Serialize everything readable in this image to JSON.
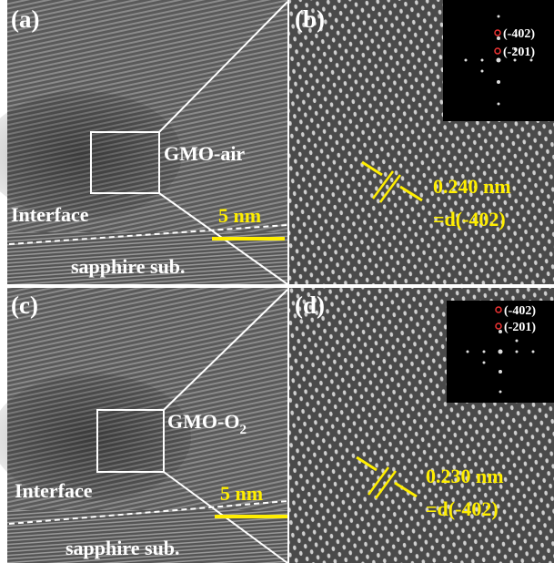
{
  "panels": [
    {
      "label": "(a)",
      "sample": "GMO-air",
      "interface": "Interface",
      "scale_bar": "5 nm",
      "substrate": "sapphire sub."
    },
    {
      "label": "(b)",
      "fft_spots": [
        "(-402)",
        "(-201)"
      ],
      "spacing": "0.240 nm",
      "plane": "=d(-402)"
    },
    {
      "label": "(c)",
      "sample": "GMO-O",
      "sample_subscript": "2",
      "interface": "Interface",
      "scale_bar": "5 nm",
      "substrate": "sapphire sub."
    },
    {
      "label": "(d)",
      "fft_spots": [
        "(-402)",
        "(-201)"
      ],
      "spacing": "0.230 nm",
      "plane": "=d(-402)"
    }
  ]
}
